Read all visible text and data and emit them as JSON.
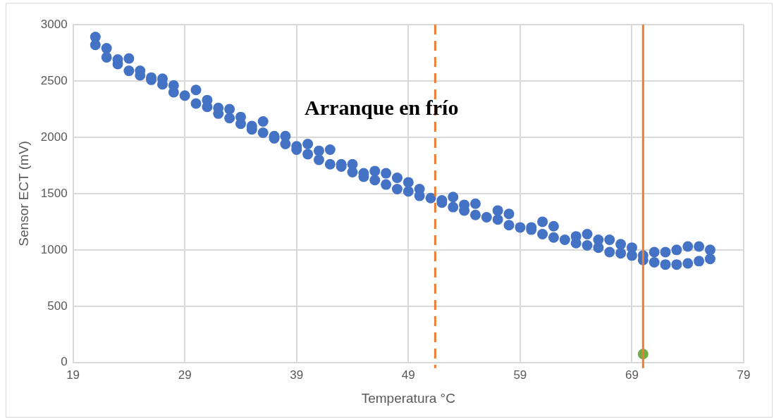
{
  "chart_data": {
    "type": "scatter",
    "xlabel": "Temperatura °C",
    "ylabel": "Sensor ECT (mV)",
    "xlim": [
      19,
      79
    ],
    "xticks": [
      19,
      29,
      39,
      49,
      59,
      69,
      79
    ],
    "ylim": [
      0,
      3000
    ],
    "yticks": [
      0,
      500,
      1000,
      1500,
      2000,
      2500,
      3000
    ],
    "grid": true,
    "legend": false,
    "marker": "circle",
    "annotations": [
      "Arranque en frío"
    ],
    "ref_lines": [
      {
        "axis": "x",
        "value": 51.4,
        "color": "#ed7d31",
        "line_style": "dashed"
      },
      {
        "axis": "x",
        "value": 70,
        "color": "#ed7d31",
        "line_style": "solid"
      }
    ],
    "series": [
      {
        "color": "#4472c4",
        "x": [
          21,
          21,
          22,
          22,
          23,
          23,
          24,
          24,
          25,
          25,
          26,
          26,
          27,
          27,
          28,
          28,
          29,
          30,
          30,
          31,
          31,
          32,
          32,
          33,
          33,
          34,
          34,
          35,
          35,
          36,
          36,
          37,
          37,
          38,
          38,
          39,
          39,
          40,
          40,
          41,
          41,
          42,
          42,
          43,
          43,
          44,
          44,
          45,
          45,
          46,
          46,
          47,
          47,
          48,
          48,
          49,
          49,
          50,
          50,
          51,
          52,
          52,
          53,
          53,
          54,
          54,
          55,
          55,
          56,
          57,
          57,
          58,
          58,
          59,
          60,
          60,
          61,
          61,
          62,
          62,
          63,
          64,
          64,
          65,
          65,
          66,
          66,
          67,
          67,
          68,
          68,
          69,
          69,
          70,
          70,
          71,
          71,
          72,
          72,
          73,
          73,
          74,
          74,
          75,
          75,
          76,
          76
        ],
        "values": [
          2820,
          2890,
          2710,
          2790,
          2650,
          2690,
          2590,
          2700,
          2550,
          2590,
          2510,
          2530,
          2470,
          2520,
          2400,
          2460,
          2370,
          2300,
          2420,
          2270,
          2330,
          2210,
          2260,
          2170,
          2250,
          2120,
          2180,
          2070,
          2100,
          2040,
          2140,
          1990,
          2010,
          1940,
          2010,
          1890,
          1920,
          1850,
          1940,
          1800,
          1880,
          1760,
          1890,
          1740,
          1760,
          1690,
          1760,
          1650,
          1680,
          1620,
          1700,
          1580,
          1680,
          1540,
          1640,
          1520,
          1600,
          1480,
          1540,
          1460,
          1420,
          1440,
          1380,
          1470,
          1350,
          1400,
          1310,
          1410,
          1290,
          1270,
          1350,
          1220,
          1320,
          1200,
          1180,
          1200,
          1140,
          1250,
          1110,
          1210,
          1090,
          1060,
          1120,
          1040,
          1140,
          1020,
          1090,
          980,
          1090,
          970,
          1050,
          950,
          1020,
          910,
          950,
          890,
          980,
          870,
          980,
          870,
          1000,
          880,
          1030,
          900,
          1030,
          920,
          1000
        ]
      },
      {
        "color": "#70ad47",
        "x": [
          70
        ],
        "values": [
          75
        ]
      }
    ]
  }
}
